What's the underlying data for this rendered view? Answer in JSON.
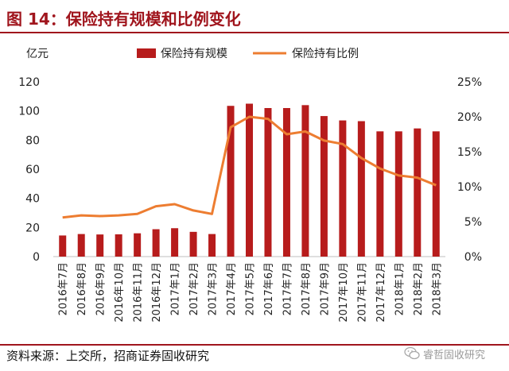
{
  "figure": {
    "title": "图 14：保险持有规模和比例变化",
    "source": "资料来源：上交所，招商证券固收研究",
    "watermark": "睿哲固收研究"
  },
  "colors": {
    "brand": "#a0151d",
    "bar": "#b71c1c",
    "line": "#ed7d31",
    "axis": "#bfbfbf"
  },
  "chart_data": {
    "type": "bar",
    "unit_label": "亿元",
    "categories": [
      "2016年7月",
      "2016年8月",
      "2016年9月",
      "2016年10月",
      "2016年11月",
      "2016年12月",
      "2017年1月",
      "2017年2月",
      "2017年3月",
      "2017年4月",
      "2017年5月",
      "2017年6月",
      "2017年7月",
      "2017年8月",
      "2017年9月",
      "2017年10月",
      "2017年11月",
      "2017年12月",
      "2018年1月",
      "2018年2月",
      "2018年3月"
    ],
    "series": [
      {
        "name": "保险持有规模",
        "type": "bar",
        "axis": "left",
        "values": [
          14.5,
          15.5,
          15.2,
          15.3,
          16.0,
          18.8,
          19.5,
          17.0,
          15.5,
          103.5,
          105.0,
          102.0,
          102.0,
          104.0,
          96.5,
          93.5,
          93.0,
          86.0,
          86.0,
          88.0,
          86.0
        ]
      },
      {
        "name": "保险持有比例",
        "type": "line",
        "axis": "right",
        "values": [
          5.6,
          5.9,
          5.8,
          5.9,
          6.1,
          7.2,
          7.5,
          6.6,
          6.1,
          18.5,
          20.0,
          19.7,
          17.5,
          17.9,
          16.6,
          16.1,
          14.1,
          12.6,
          11.6,
          11.3,
          10.2
        ]
      }
    ],
    "left_axis": {
      "min": 0,
      "max": 120,
      "ticks": [
        "0",
        "20",
        "40",
        "60",
        "80",
        "100",
        "120"
      ]
    },
    "right_axis": {
      "min": 0,
      "max": 25,
      "ticks": [
        "0%",
        "5%",
        "10%",
        "15%",
        "20%",
        "25%"
      ]
    },
    "grid": false,
    "legend_position": "top-right"
  }
}
